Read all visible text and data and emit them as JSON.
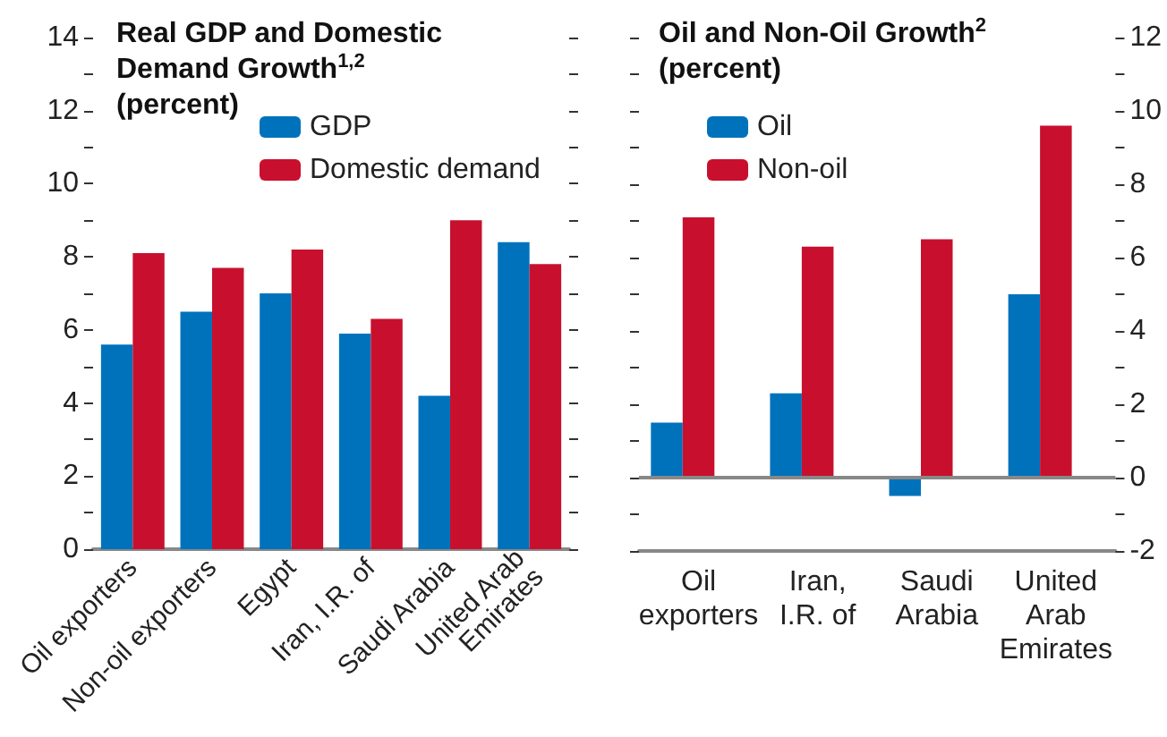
{
  "chart_data": [
    {
      "type": "bar",
      "title": "Real GDP and Domestic\nDemand Growth$^{1,2}$\n(percent)",
      "categories": [
        "Oil exporters",
        "Non-oil exporters",
        "Egypt",
        "Iran, I.R. of",
        "Saudi Arabia",
        "United Arab\nEmirates"
      ],
      "series": [
        {
          "name": "GDP",
          "color": "#0072bc",
          "values": [
            5.6,
            6.5,
            7.0,
            5.9,
            4.2,
            8.4
          ]
        },
        {
          "name": "Domestic demand",
          "color": "#c8102e",
          "values": [
            8.1,
            7.7,
            8.2,
            6.3,
            9.0,
            7.8
          ]
        }
      ],
      "ylim": [
        0,
        14
      ],
      "yticks": [
        0,
        {
          "value": 1,
          "label": null
        },
        2,
        {
          "value": 3,
          "label": null
        },
        4,
        {
          "value": 5,
          "label": null
        },
        6,
        {
          "value": 7,
          "label": null
        },
        8,
        {
          "value": 9,
          "label": null
        },
        10,
        {
          "value": 11,
          "label": null
        },
        12,
        {
          "value": 13,
          "label": null
        },
        14
      ],
      "legend": "top"
    },
    {
      "type": "bar",
      "title": "Oil and Non-Oil Growth$^{2}$\n(percent)",
      "categories": [
        "Oil\nexporters",
        "Iran,\nI.R. of",
        "Saudi\nArabia",
        "United\nArab\nEmirates"
      ],
      "series": [
        {
          "name": "Oil",
          "color": "#0072bc",
          "axis": "y2",
          "values": [
            1.5,
            2.3,
            -0.5,
            5.0
          ]
        },
        {
          "name": "Non-oil",
          "color": "#c8102e",
          "axis": "y2",
          "values": [
            7.1,
            6.3,
            6.5,
            9.6
          ]
        }
      ],
      "y2lim": [
        -2,
        12
      ],
      "y2ticks": [
        -2,
        {
          "value": -1,
          "label": null
        },
        0,
        {
          "value": 1,
          "label": null
        },
        2,
        {
          "value": 3,
          "label": null
        },
        4,
        {
          "value": 5,
          "label": null
        },
        6,
        {
          "value": 7,
          "label": null
        },
        8,
        {
          "value": 9,
          "label": null
        },
        10,
        {
          "value": 11,
          "label": null
        },
        12
      ],
      "legend": "top left"
    }
  ]
}
